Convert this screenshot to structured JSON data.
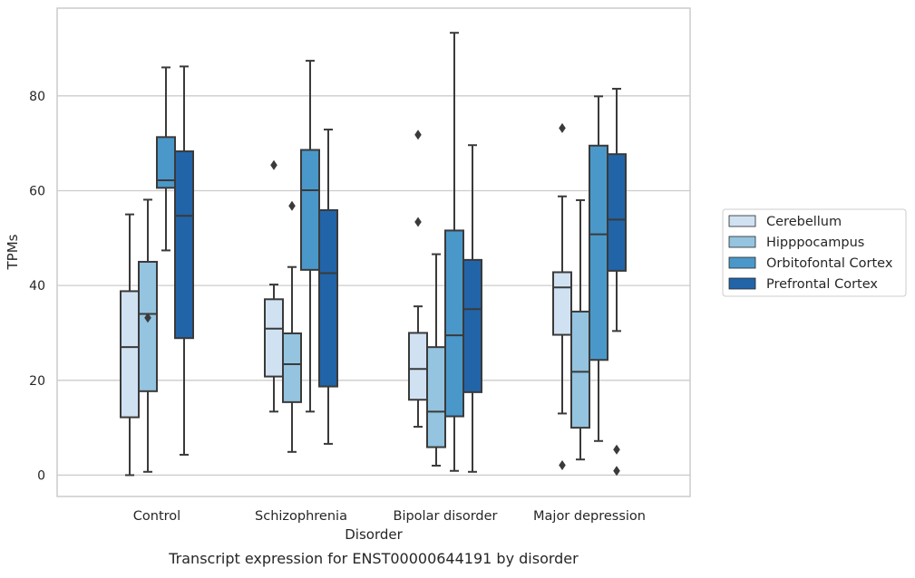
{
  "caption": "Transcript expression for ENST00000644191 by disorder",
  "chart_data": {
    "type": "box",
    "title": "",
    "xlabel": "Disorder",
    "ylabel": "TPMs",
    "ylim": [
      -4.5,
      98.5
    ],
    "yticks": [
      0,
      20,
      40,
      60,
      80
    ],
    "grid": "horizontal",
    "legend_position": "right",
    "categories": [
      "Control",
      "Schizophrenia",
      "Bipolar disorder",
      "Major depression"
    ],
    "series": [
      {
        "name": "Cerebellum",
        "color": "#d0e1f2",
        "boxes": [
          {
            "whislo": 0,
            "q1": 12.2,
            "med": 27,
            "q3": 38.8,
            "whishi": 55,
            "fliers": []
          },
          {
            "whislo": 13.4,
            "q1": 20.8,
            "med": 30.9,
            "q3": 37.1,
            "whishi": 40.2,
            "fliers": [
              65.4
            ]
          },
          {
            "whislo": 10.2,
            "q1": 15.9,
            "med": 22.4,
            "q3": 30,
            "whishi": 35.6,
            "fliers": [
              53.4,
              71.8
            ]
          },
          {
            "whislo": 13,
            "q1": 29.6,
            "med": 39.6,
            "q3": 42.8,
            "whishi": 58.8,
            "fliers": [
              2.1,
              73.2
            ]
          }
        ]
      },
      {
        "name": "Hipppocampus",
        "color": "#94c4df",
        "boxes": [
          {
            "whislo": 0.7,
            "q1": 17.7,
            "med": 34,
            "q3": 45,
            "whishi": 58.1,
            "fliers": [
              33.2
            ]
          },
          {
            "whislo": 4.9,
            "q1": 15.4,
            "med": 23.4,
            "q3": 29.9,
            "whishi": 43.9,
            "fliers": [
              56.8
            ]
          },
          {
            "whislo": 2,
            "q1": 5.9,
            "med": 13.4,
            "q3": 27,
            "whishi": 46.6,
            "fliers": []
          },
          {
            "whislo": 3.3,
            "q1": 10,
            "med": 21.8,
            "q3": 34.5,
            "whishi": 58,
            "fliers": []
          }
        ]
      },
      {
        "name": "Orbitofontal Cortex",
        "color": "#4a98c9",
        "boxes": [
          {
            "whislo": 47.4,
            "q1": 60.6,
            "med": 62.2,
            "q3": 71.3,
            "whishi": 86,
            "fliers": []
          },
          {
            "whislo": 13.4,
            "q1": 43.3,
            "med": 60.1,
            "q3": 68.6,
            "whishi": 87.4,
            "fliers": []
          },
          {
            "whislo": 0.9,
            "q1": 12.4,
            "med": 29.5,
            "q3": 51.6,
            "whishi": 93.3,
            "fliers": []
          },
          {
            "whislo": 7.2,
            "q1": 24.3,
            "med": 50.8,
            "q3": 69.5,
            "whishi": 79.9,
            "fliers": []
          }
        ]
      },
      {
        "name": "Prefrontal Cortex",
        "color": "#2264a8",
        "boxes": [
          {
            "whislo": 4.3,
            "q1": 28.9,
            "med": 54.7,
            "q3": 68.3,
            "whishi": 86.2,
            "fliers": []
          },
          {
            "whislo": 6.6,
            "q1": 18.7,
            "med": 42.6,
            "q3": 55.9,
            "whishi": 72.9,
            "fliers": []
          },
          {
            "whislo": 0.7,
            "q1": 17.5,
            "med": 35,
            "q3": 45.4,
            "whishi": 69.6,
            "fliers": []
          },
          {
            "whislo": 30.4,
            "q1": 43.1,
            "med": 53.9,
            "q3": 67.7,
            "whishi": 81.5,
            "fliers": [
              0.9,
              5.4
            ]
          }
        ]
      }
    ]
  }
}
